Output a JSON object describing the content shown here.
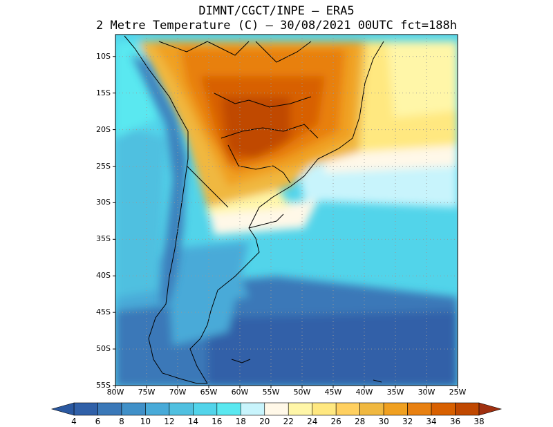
{
  "title_line1": "DIMNT/CGCT/INPE –  ERA5",
  "title_line2": "2 Metre Temperature (C) –  30/08/2021 00UTC fct=188h",
  "map": {
    "lat_labels": [
      "10S",
      "15S",
      "20S",
      "25S",
      "30S",
      "35S",
      "40S",
      "45S",
      "50S",
      "55S"
    ],
    "lat_values": [
      -10,
      -15,
      -20,
      -25,
      -30,
      -35,
      -40,
      -45,
      -50,
      -55
    ],
    "lon_labels": [
      "80W",
      "75W",
      "70W",
      "65W",
      "60W",
      "55W",
      "50W",
      "45W",
      "40W",
      "35W",
      "30W",
      "25W"
    ],
    "lon_values": [
      -80,
      -75,
      -70,
      -65,
      -60,
      -55,
      -50,
      -45,
      -40,
      -35,
      -30,
      -25
    ],
    "lat_range": [
      -55,
      -7
    ],
    "lon_range": [
      -80,
      -25
    ],
    "grid_style": "dotted"
  },
  "colorbar": {
    "labels": [
      "4",
      "6",
      "8",
      "10",
      "12",
      "14",
      "16",
      "18",
      "20",
      "22",
      "24",
      "26",
      "28",
      "30",
      "32",
      "34",
      "36",
      "38"
    ],
    "colors": [
      "#3060a8",
      "#3a78b8",
      "#4090c8",
      "#48aad8",
      "#50c0e0",
      "#52d4ea",
      "#5ae8f0",
      "#c8f4fc",
      "#fff8e8",
      "#fff6a8",
      "#ffe880",
      "#ffd060",
      "#f0b840",
      "#f0a020",
      "#e88010",
      "#d86000",
      "#c04800"
    ]
  }
}
